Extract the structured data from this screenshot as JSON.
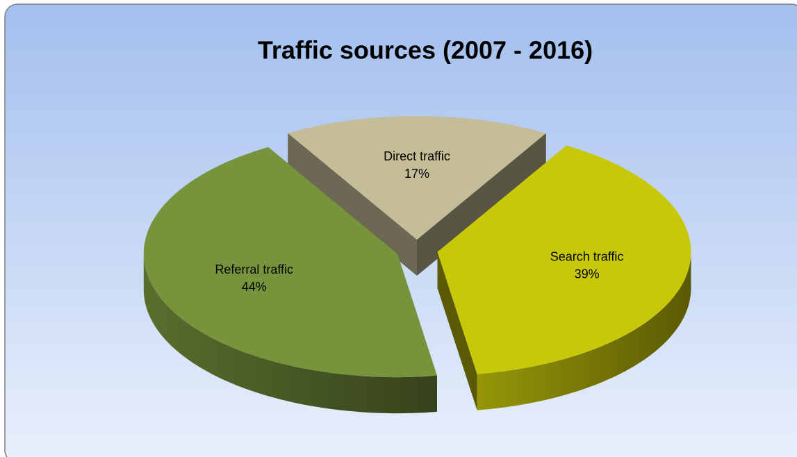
{
  "chart_data": {
    "type": "pie3d",
    "title": "Traffic sources (2007 - 2016)",
    "categories": [
      "Direct traffic",
      "Search traffic",
      "Referral traffic"
    ],
    "values": [
      17,
      39,
      44
    ],
    "value_labels": [
      "17%",
      "39%",
      "44%"
    ],
    "colors": [
      "#c4bd97",
      "#c8c80a",
      "#77933c"
    ]
  }
}
